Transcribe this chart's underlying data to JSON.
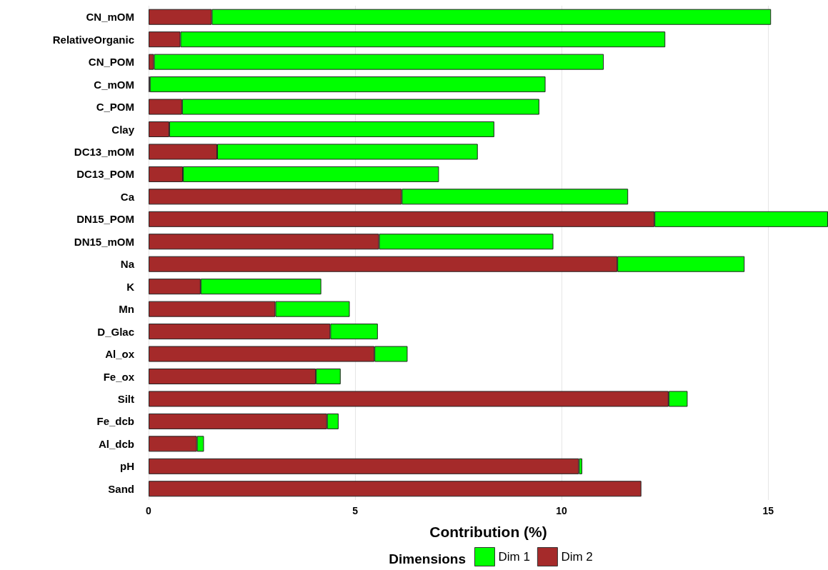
{
  "chart_data": {
    "type": "bar",
    "orientation": "horizontal",
    "stacked": true,
    "categories": [
      "CN_mOM",
      "RelativeOrganic",
      "CN_POM",
      "C_mOM",
      "C_POM",
      "Clay",
      "DC13_mOM",
      "DC13_POM",
      "Ca",
      "DN15_POM",
      "DN15_mOM",
      "Na",
      "K",
      "Mn",
      "D_Glac",
      "Al_ox",
      "Fe_ox",
      "Silt",
      "Fe_dcb",
      "Al_dcb",
      "pH",
      "Sand"
    ],
    "series": [
      {
        "name": "Dim 2",
        "color": "#a52a2a",
        "values": [
          1.53,
          0.77,
          0.13,
          0.03,
          0.81,
          0.5,
          1.66,
          0.83,
          6.13,
          12.25,
          5.58,
          11.35,
          1.26,
          3.07,
          4.4,
          5.47,
          4.05,
          12.59,
          4.32,
          1.17,
          10.42,
          11.93
        ]
      },
      {
        "name": "Dim 1",
        "color": "#00ff00",
        "values": [
          13.54,
          11.74,
          10.89,
          9.58,
          8.65,
          7.87,
          6.31,
          6.2,
          5.48,
          4.2,
          4.22,
          3.08,
          2.92,
          1.8,
          1.15,
          0.8,
          0.6,
          0.46,
          0.28,
          0.17,
          0.08,
          null
        ]
      }
    ],
    "xlabel": "Contribution (%)",
    "legend_title": "Dimensions",
    "xlim": [
      0,
      16.45
    ],
    "xticks": [
      0,
      5,
      10,
      15
    ],
    "grid": "x",
    "legend": "bottom"
  }
}
